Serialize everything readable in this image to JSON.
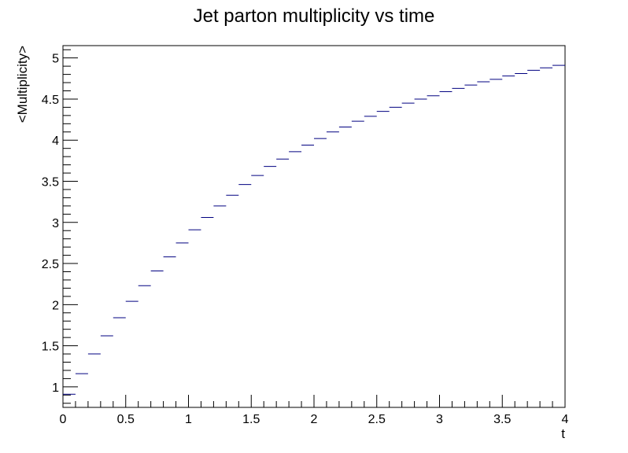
{
  "chart_data": {
    "type": "scatter",
    "title": "Jet parton multiplicity vs time",
    "xlabel": "t",
    "ylabel": "<Multiplicity>",
    "xlim": [
      0,
      4
    ],
    "ylim": [
      0.75,
      5.15
    ],
    "grid": false,
    "x_ticks": [
      0,
      0.5,
      1,
      1.5,
      2,
      2.5,
      3,
      3.5,
      4
    ],
    "x_tick_labels": [
      "0",
      "0.5",
      "1",
      "1.5",
      "2",
      "2.5",
      "3",
      "3.5",
      "4"
    ],
    "y_ticks": [
      1,
      1.5,
      2,
      2.5,
      3,
      3.5,
      4,
      4.5,
      5
    ],
    "y_tick_labels": [
      "1",
      "1.5",
      "2",
      "2.5",
      "3",
      "3.5",
      "4",
      "4.5",
      "5"
    ],
    "bin_width": 0.1,
    "line_color": "#000080",
    "series": [
      {
        "x": [
          0.05,
          0.15,
          0.25,
          0.35,
          0.45,
          0.55,
          0.65,
          0.75,
          0.85,
          0.95,
          1.05,
          1.15,
          1.25,
          1.35,
          1.45,
          1.55,
          1.65,
          1.75,
          1.85,
          1.95,
          2.05,
          2.15,
          2.25,
          2.35,
          2.45,
          2.55,
          2.65,
          2.75,
          2.85,
          2.95,
          3.05,
          3.15,
          3.25,
          3.35,
          3.45,
          3.55,
          3.65,
          3.75,
          3.85,
          3.95
        ],
        "values": [
          0.91,
          1.16,
          1.4,
          1.62,
          1.84,
          2.04,
          2.23,
          2.41,
          2.58,
          2.75,
          2.91,
          3.06,
          3.2,
          3.33,
          3.46,
          3.57,
          3.68,
          3.77,
          3.86,
          3.94,
          4.02,
          4.1,
          4.16,
          4.23,
          4.29,
          4.35,
          4.4,
          4.45,
          4.5,
          4.54,
          4.59,
          4.63,
          4.67,
          4.71,
          4.74,
          4.78,
          4.81,
          4.85,
          4.88,
          4.91
        ]
      }
    ]
  }
}
